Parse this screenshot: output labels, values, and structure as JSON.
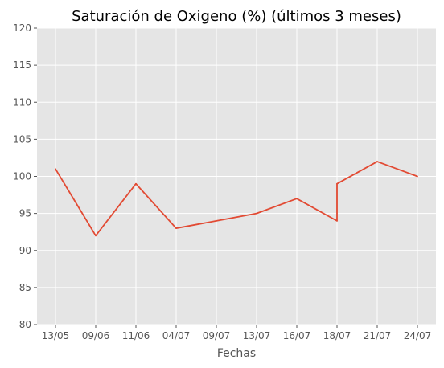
{
  "chart_data": {
    "type": "line",
    "title": "Saturación de Oxigeno (%) (últimos 3 meses)",
    "xlabel": "Fechas",
    "ylabel": "",
    "x_ticks": [
      "13/05",
      "09/06",
      "11/06",
      "04/07",
      "09/07",
      "13/07",
      "16/07",
      "18/07",
      "21/07",
      "24/07"
    ],
    "ylim": [
      80,
      120
    ],
    "y_ticks": [
      80,
      85,
      90,
      95,
      100,
      105,
      110,
      115,
      120
    ],
    "grid": true,
    "series": [
      {
        "color": "#e24a33",
        "points": [
          {
            "x": "13/05",
            "y": 101
          },
          {
            "x": "09/06",
            "y": 92
          },
          {
            "x": "11/06",
            "y": 99
          },
          {
            "x": "04/07",
            "y": 93
          },
          {
            "x": "09/07",
            "y": 94
          },
          {
            "x": "13/07",
            "y": 95
          },
          {
            "x": "16/07",
            "y": 97
          },
          {
            "x": "18/07",
            "y": 94
          },
          {
            "x": "18/07",
            "y": 99
          },
          {
            "x": "21/07",
            "y": 102
          },
          {
            "x": "24/07",
            "y": 100
          }
        ]
      }
    ],
    "colors": {
      "background": "#e5e5e5",
      "grid": "#ffffff",
      "line": "#e24a33"
    }
  }
}
